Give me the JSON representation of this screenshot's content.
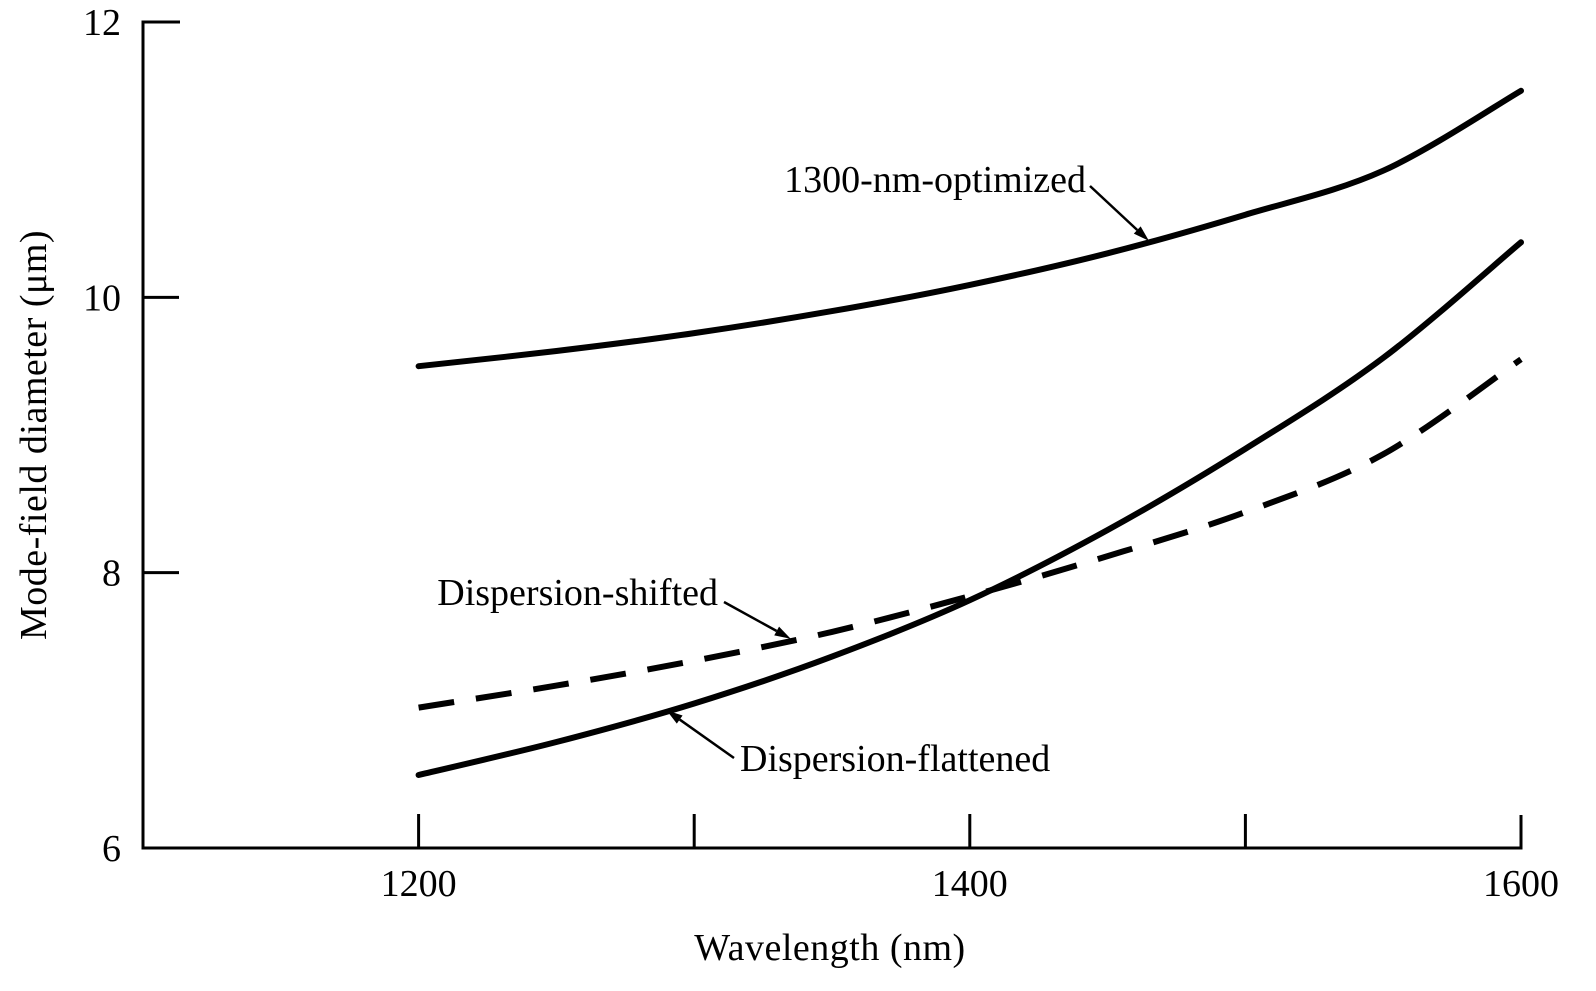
{
  "chart_data": {
    "type": "line",
    "title": "",
    "xlabel": "Wavelength (nm)",
    "ylabel": "Mode-field diameter (μm)",
    "xlim": [
      1100,
      1600
    ],
    "ylim": [
      6,
      12
    ],
    "x_ticks": [
      1200,
      1400,
      1600
    ],
    "x_minor_ticks": [
      1300,
      1500
    ],
    "y_ticks": [
      6,
      8,
      10,
      12
    ],
    "grid": false,
    "legend": "none",
    "series": [
      {
        "name": "1300-nm-optimized",
        "style": "solid",
        "x": [
          1200,
          1250,
          1300,
          1350,
          1400,
          1450,
          1500,
          1550,
          1600
        ],
        "y": [
          9.5,
          9.61,
          9.74,
          9.9,
          10.09,
          10.32,
          10.6,
          10.92,
          11.5
        ],
        "annotation_at": [
          1465,
          10.41
        ]
      },
      {
        "name": "Dispersion-shifted",
        "style": "dashed",
        "x": [
          1200,
          1250,
          1300,
          1350,
          1400,
          1450,
          1500,
          1550,
          1600
        ],
        "y": [
          7.02,
          7.18,
          7.36,
          7.57,
          7.83,
          8.12,
          8.44,
          8.86,
          9.55
        ],
        "annotation_at": [
          1335,
          7.52
        ]
      },
      {
        "name": "Dispersion-flattened",
        "style": "solid",
        "x": [
          1200,
          1250,
          1300,
          1350,
          1400,
          1450,
          1500,
          1550,
          1600
        ],
        "y": [
          6.53,
          6.77,
          7.05,
          7.39,
          7.8,
          8.31,
          8.9,
          9.56,
          10.4
        ],
        "annotation_at": [
          1290,
          7.0
        ]
      }
    ]
  }
}
